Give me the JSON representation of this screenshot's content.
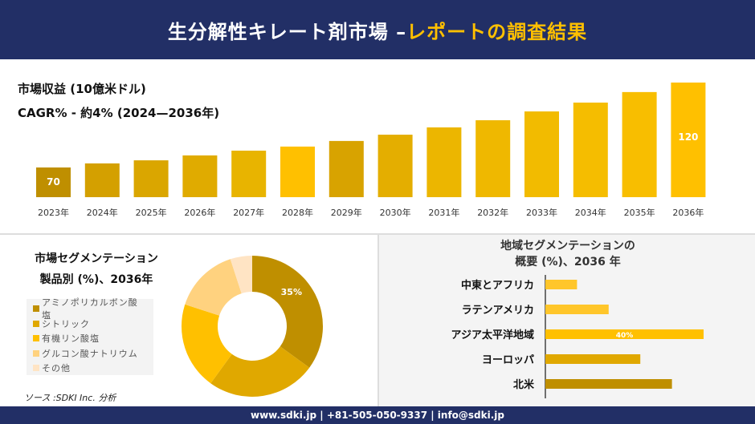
{
  "header": {
    "title_main": "生分解性キレート剤市場 –",
    "title_highlight": "レポートの調査結果"
  },
  "revenue": {
    "title": "市場収益 (10億米ドル)",
    "cagr": "CAGR% - 約4% (2024—2036年)"
  },
  "product_segment": {
    "title_line1": "市場セグメンテーション",
    "title_line2": "製品別 (%)、2036年"
  },
  "region_segment": {
    "title_line1": "地域セグメンテーションの",
    "title_line2": "概要 (%)、2036 年"
  },
  "source": "ソース :SDKI Inc. 分析",
  "footer": {
    "contact": "www.sdki.jp | +81-505-050-9337 | info@sdki.jp"
  },
  "colors": {
    "navy": "#222f66",
    "accent": "#ffc000",
    "dark_gold": "#bf8f00"
  },
  "chart_data": [
    {
      "type": "bar",
      "title": "市場収益 (10億米ドル)",
      "categories": [
        "2023年",
        "2024年",
        "2025年",
        "2026年",
        "2027年",
        "2028年",
        "2029年",
        "2030年",
        "2031年",
        "2032年",
        "2033年",
        "2034年",
        "2035年",
        "2036年"
      ],
      "values": [
        70,
        72.4,
        74.2,
        77.1,
        79.9,
        82.3,
        85.6,
        89.3,
        93.6,
        97.8,
        103,
        108.2,
        114.4,
        120
      ],
      "data_labels": {
        "0": "70",
        "13": "120"
      },
      "colors": [
        "#bf8f00",
        "#d4a000",
        "#daa600",
        "#e0ab00",
        "#e8b400",
        "#ffc000",
        "#d8a300",
        "#e4ae00",
        "#ecb600",
        "#efb800",
        "#f2bb00",
        "#f5bd00",
        "#f8be00",
        "#ffc000"
      ],
      "grid": false
    },
    {
      "type": "pie",
      "donut": true,
      "title": "市場セグメンテーション 製品別 (%)、2036年",
      "labels": [
        "アミノポリカルボン酸塩",
        "シトリック",
        "有機リン酸塩",
        "グルコン酸ナトリウム",
        "その他"
      ],
      "values": [
        35,
        25,
        20,
        15,
        5
      ],
      "data_labels": {
        "0": "35%"
      },
      "colors": [
        "#bf8f00",
        "#e0a800",
        "#ffc000",
        "#ffd27f",
        "#ffe4c4"
      ],
      "legend": "left"
    },
    {
      "type": "bar",
      "orientation": "horizontal",
      "title": "地域セグメンテーションの概要 (%)、2036 年",
      "categories": [
        "中東とアフリカ",
        "ラテンアメリカ",
        "アジア太平洋地域",
        "ヨーロッパ",
        "北米"
      ],
      "values": [
        8,
        16,
        40,
        24,
        32
      ],
      "data_labels": {
        "2": "40%"
      },
      "colors": [
        "#ffc62a",
        "#ffc62a",
        "#ffc000",
        "#e0a800",
        "#bf8f00"
      ]
    }
  ]
}
